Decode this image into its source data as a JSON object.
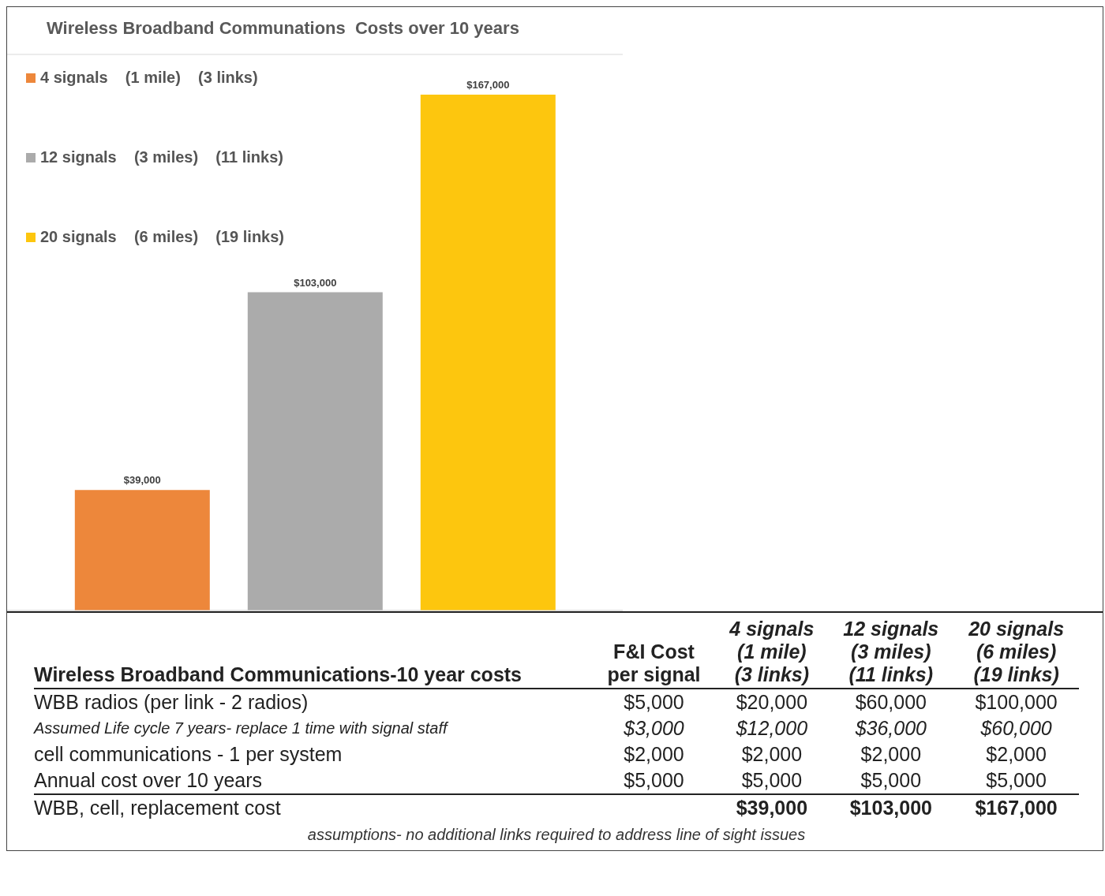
{
  "chart_data": {
    "type": "bar",
    "title": "Wireless Broadband Communations  Costs over 10 years",
    "categories": [
      null
    ],
    "series": [
      {
        "name": "4 signals    (1 mile)    (3 links)",
        "color": "#ed873b",
        "values": [
          39000
        ],
        "value_labels": [
          "$39,000"
        ]
      },
      {
        "name": "12 signals    (3 miles)    (11 links)",
        "color": "#ababab",
        "values": [
          103000
        ],
        "value_labels": [
          "$103,000"
        ]
      },
      {
        "name": "20 signals    (6 miles)    (19 links)",
        "color": "#fdc60e",
        "values": [
          167000
        ],
        "value_labels": [
          "$167,000"
        ]
      }
    ],
    "ylim": [
      0,
      180000
    ],
    "grid": "y",
    "legend": "top left",
    "annotations": [
      "Wireless Broadband Communications-10 year costs",
      "F&I Cost\nper signal",
      "4 signals\n(1 mile)\n(3 links)",
      "12 signals\n(3 miles)\n(11 links)",
      "20 signals\n(6 miles)\n(19 links)",
      "WBB radios (per link - 2 radios)",
      "$5,000",
      "$20,000",
      "$60,000",
      "$100,000",
      "Assumed Life cycle 7 years- replace 1 time with signal staff",
      "$3,000",
      "$12,000",
      "$36,000",
      "$60,000",
      "cell communications - 1 per system",
      "$2,000",
      "$2,000",
      "$2,000",
      "$2,000",
      "Annual cost over 10 years",
      "$5,000",
      "$5,000",
      "$5,000",
      "$5,000",
      "WBB, cell, replacement cost",
      "assumptions- no additional links required to address line of sight issues"
    ]
  }
}
